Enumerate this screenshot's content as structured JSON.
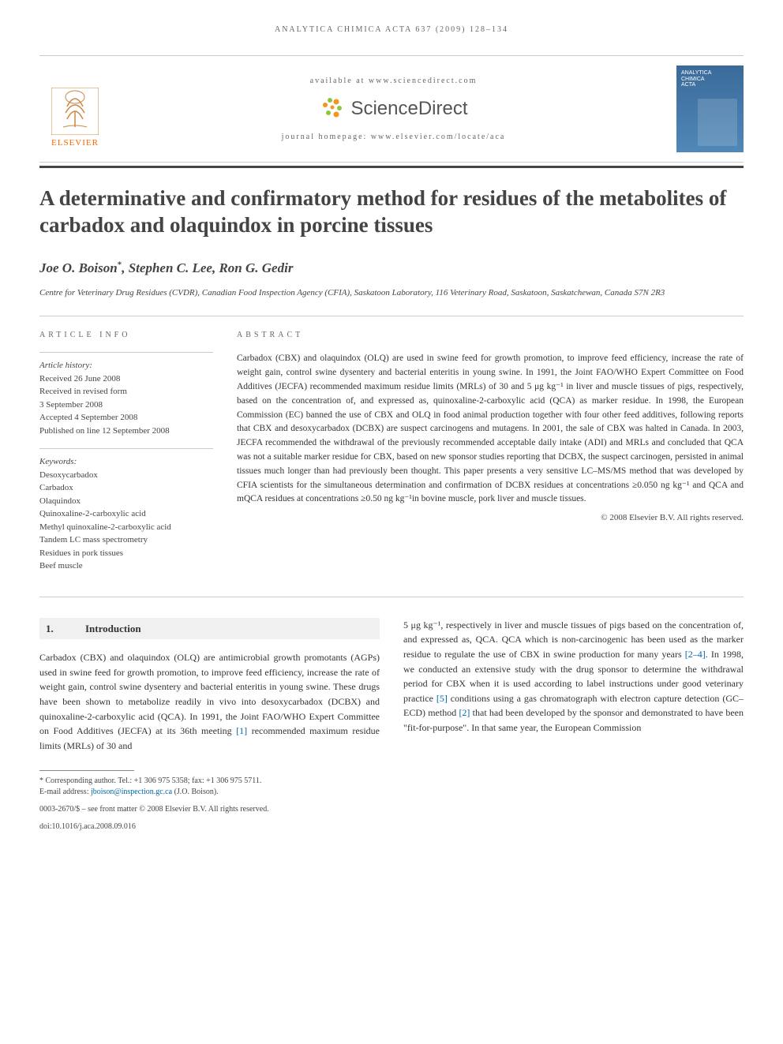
{
  "running_head": "ANALYTICA CHIMICA ACTA 637 (2009) 128–134",
  "header": {
    "publisher_name": "ELSEVIER",
    "available_at": "available at www.sciencedirect.com",
    "brand": "ScienceDirect",
    "homepage": "journal homepage: www.elsevier.com/locate/aca",
    "cover_title": "ANALYTICA\nCHIMICA\nACTA"
  },
  "title": "A determinative and confirmatory method for residues of the metabolites of carbadox and olaquindox in porcine tissues",
  "authors": "Joe O. Boison*, Stephen C. Lee, Ron G. Gedir",
  "affiliation": "Centre for Veterinary Drug Residues (CVDR), Canadian Food Inspection Agency (CFIA), Saskatoon Laboratory, 116 Veterinary Road, Saskatoon, Saskatchewan, Canada S7N 2R3",
  "article_info": {
    "label": "ARTICLE INFO",
    "history_label": "Article history:",
    "history": [
      "Received 26 June 2008",
      "Received in revised form",
      "3 September 2008",
      "Accepted 4 September 2008",
      "Published on line 12 September 2008"
    ],
    "keywords_label": "Keywords:",
    "keywords": [
      "Desoxycarbadox",
      "Carbadox",
      "Olaquindox",
      "Quinoxaline-2-carboxylic acid",
      "Methyl quinoxaline-2-carboxylic acid",
      "Tandem LC mass spectrometry",
      "Residues in pork tissues",
      "Beef muscle"
    ]
  },
  "abstract": {
    "label": "ABSTRACT",
    "text": "Carbadox (CBX) and olaquindox (OLQ) are used in swine feed for growth promotion, to improve feed efficiency, increase the rate of weight gain, control swine dysentery and bacterial enteritis in young swine. In 1991, the Joint FAO/WHO Expert Committee on Food Additives (JECFA) recommended maximum residue limits (MRLs) of 30 and 5 μg kg⁻¹ in liver and muscle tissues of pigs, respectively, based on the concentration of, and expressed as, quinoxaline-2-carboxylic acid (QCA) as marker residue. In 1998, the European Commission (EC) banned the use of CBX and OLQ in food animal production together with four other feed additives, following reports that CBX and desoxycarbadox (DCBX) are suspect carcinogens and mutagens. In 2001, the sale of CBX was halted in Canada. In 2003, JECFA recommended the withdrawal of the previously recommended acceptable daily intake (ADI) and MRLs and concluded that QCA was not a suitable marker residue for CBX, based on new sponsor studies reporting that DCBX, the suspect carcinogen, persisted in animal tissues much longer than had previously been thought. This paper presents a very sensitive LC–MS/MS method that was developed by CFIA scientists for the simultaneous determination and confirmation of DCBX residues at concentrations ≥0.050 ng kg⁻¹ and QCA and mQCA residues at concentrations ≥0.50 ng kg⁻¹in bovine muscle, pork liver and muscle tissues.",
    "copyright": "© 2008 Elsevier B.V. All rights reserved."
  },
  "body": {
    "section_num": "1.",
    "section_title": "Introduction",
    "col1": "Carbadox (CBX) and olaquindox (OLQ) are antimicrobial growth promotants (AGPs) used in swine feed for growth promotion, to improve feed efficiency, increase the rate of weight gain, control swine dysentery and bacterial enteritis in young swine. These drugs have been shown to metabolize readily in vivo into desoxycarbadox (DCBX) and quinoxaline-2-carboxylic acid (QCA). In 1991, the Joint FAO/WHO Expert Committee on Food Additives (JECFA) at its 36th meeting [1] recommended maximum residue limits (MRLs) of 30 and",
    "col2": "5 μg kg⁻¹, respectively in liver and muscle tissues of pigs based on the concentration of, and expressed as, QCA. QCA which is non-carcinogenic has been used as the marker residue to regulate the use of CBX in swine production for many years [2–4]. In 1998, we conducted an extensive study with the drug sponsor to determine the withdrawal period for CBX when it is used according to label instructions under good veterinary practice [5] conditions using a gas chromatograph with electron capture detection (GC–ECD) method [2] that had been developed by the sponsor and demonstrated to have been \"fit-for-purpose\". In that same year, the European Commission"
  },
  "footnote": {
    "corresponding": "* Corresponding author. Tel.: +1 306 975 5358; fax: +1 306 975 5711.",
    "email_label": "E-mail address:",
    "email": "jboison@inspection.gc.ca",
    "email_author": "(J.O. Boison)."
  },
  "footer": {
    "issn": "0003-2670/$ – see front matter © 2008 Elsevier B.V. All rights reserved.",
    "doi": "doi:10.1016/j.aca.2008.09.016"
  },
  "colors": {
    "elsevier_orange": "#ff6600",
    "sd_orange": "#f7931e",
    "sd_green": "#8cc63f",
    "cover_blue_top": "#3a6a9a",
    "cover_blue_bot": "#5088b8",
    "link_blue": "#0066aa",
    "text_dark": "#333333",
    "text_gray": "#666666",
    "bar_gray": "#444444",
    "rule_gray": "#cccccc",
    "heading_bg": "#f0f0f0"
  }
}
